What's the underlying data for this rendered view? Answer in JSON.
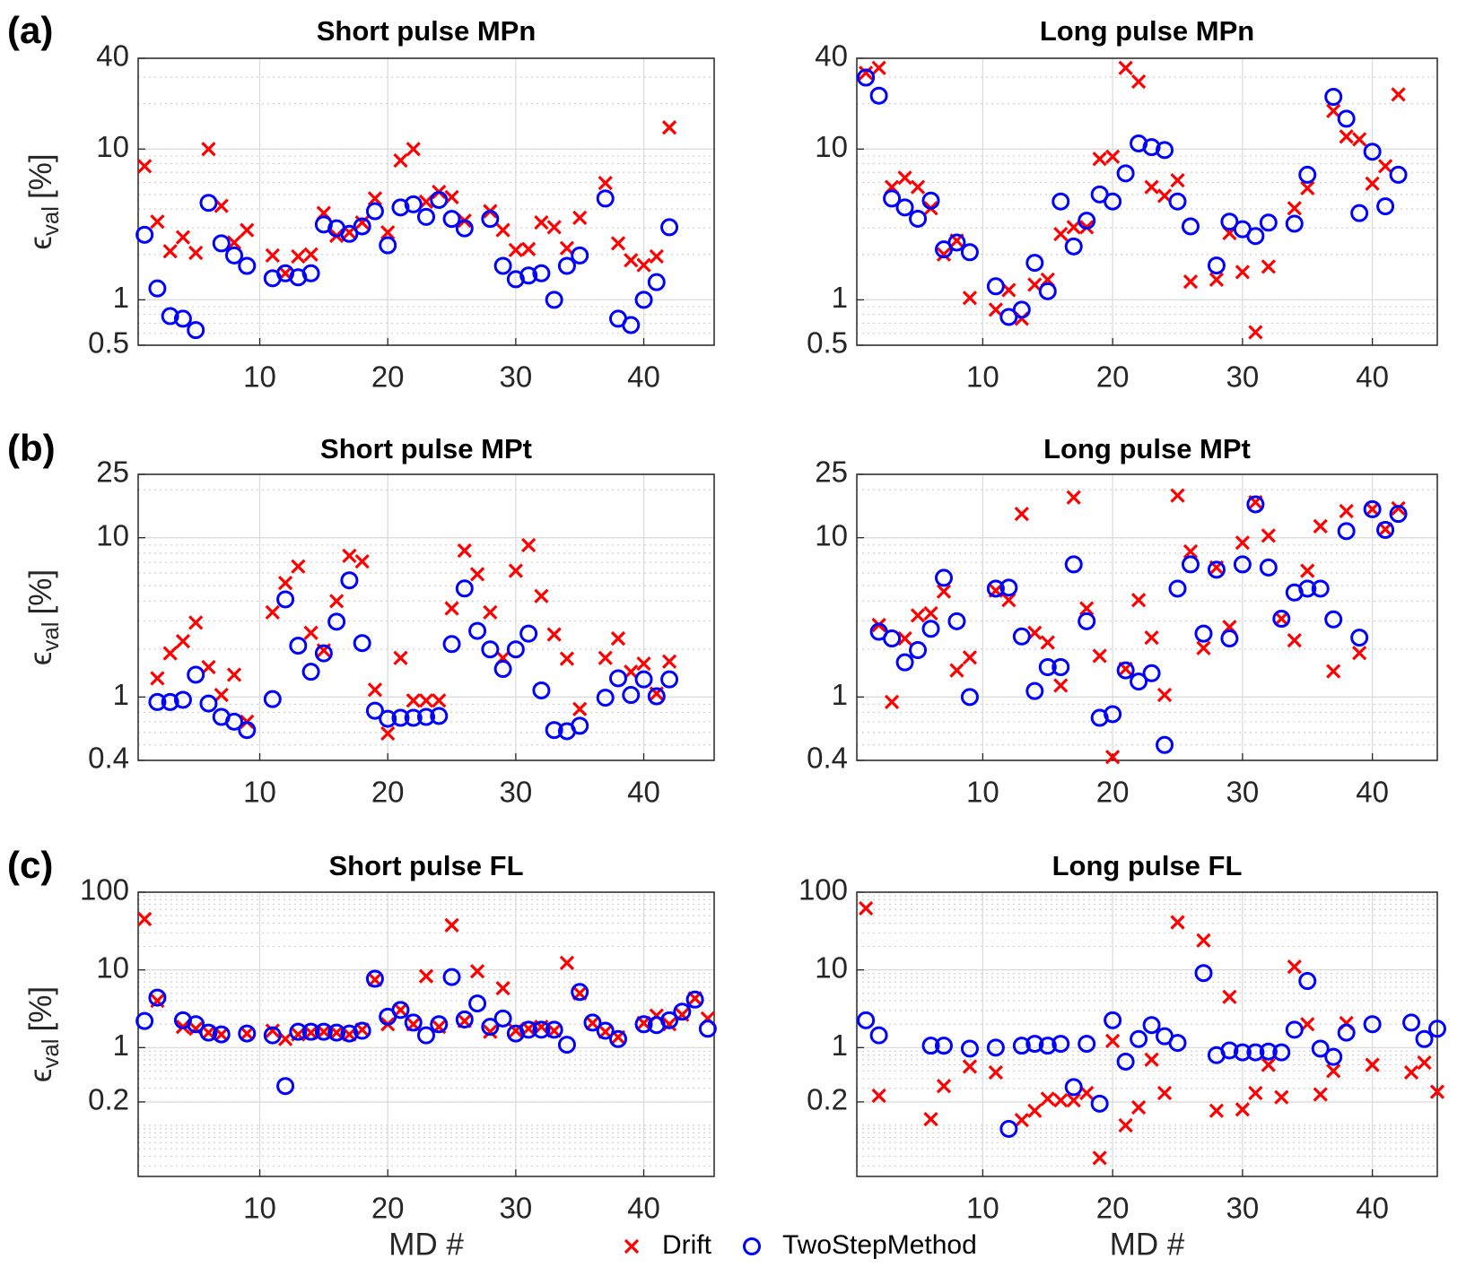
{
  "chart_data": [
    {
      "type": "scatter",
      "panel_label": "(a)",
      "title": "Short pulse MPn",
      "ylabel": {
        "symbol": "ϵ",
        "subscript": "val",
        "unit": "[%]"
      },
      "log_y": true,
      "grid": true,
      "minor_grid": true,
      "xlim": [
        0.5,
        45.5
      ],
      "xticks": [
        10,
        20,
        30,
        40
      ],
      "ylim": [
        0.5,
        40
      ],
      "yticks": [
        0.5,
        1,
        10,
        40
      ],
      "x": [
        1,
        2,
        3,
        4,
        5,
        6,
        7,
        8,
        9,
        11,
        12,
        13,
        14,
        15,
        16,
        17,
        18,
        19,
        20,
        21,
        22,
        23,
        24,
        25,
        26,
        28,
        29,
        30,
        31,
        32,
        33,
        34,
        35,
        37,
        38,
        39,
        40,
        41,
        42
      ],
      "series": [
        {
          "marker": "x",
          "color": "#ff0000",
          "values": [
            7.7,
            3.3,
            2.1,
            2.6,
            2.05,
            10,
            4.2,
            2.4,
            2.9,
            1.97,
            1.5,
            1.94,
            2.0,
            3.76,
            2.66,
            2.8,
            3.26,
            4.7,
            2.8,
            8.4,
            10,
            4.47,
            5.2,
            4.8,
            3.35,
            3.87,
            2.9,
            2.14,
            2.17,
            3.26,
            3.03,
            2.2,
            3.5,
            5.95,
            2.37,
            1.83,
            1.7,
            1.94,
            13.9
          ]
        },
        {
          "marker": "o",
          "color": "#0000ff",
          "values": [
            2.7,
            1.19,
            0.78,
            0.75,
            0.63,
            4.4,
            2.37,
            1.97,
            1.68,
            1.39,
            1.5,
            1.41,
            1.5,
            3.16,
            2.98,
            2.74,
            3.07,
            3.87,
            2.3,
            4.1,
            4.3,
            3.55,
            4.6,
            3.44,
            2.98,
            3.44,
            1.68,
            1.37,
            1.45,
            1.5,
            1.0,
            1.68,
            1.97,
            4.7,
            0.75,
            0.68,
            1.0,
            1.31,
            3.03
          ]
        }
      ]
    },
    {
      "type": "scatter",
      "title": "Long pulse MPn",
      "log_y": true,
      "grid": true,
      "minor_grid": true,
      "xlim": [
        0.3,
        45
      ],
      "xticks": [
        10,
        20,
        30,
        40
      ],
      "ylim": [
        0.5,
        40
      ],
      "yticks": [
        0.5,
        1,
        10,
        40
      ],
      "x": [
        1,
        2,
        3,
        4,
        5,
        6,
        7,
        8,
        9,
        11,
        12,
        13,
        14,
        15,
        16,
        17,
        18,
        19,
        20,
        21,
        22,
        23,
        24,
        25,
        26,
        28,
        29,
        30,
        31,
        32,
        34,
        35,
        37,
        38,
        39,
        40,
        41,
        42
      ],
      "series": [
        {
          "marker": "x",
          "color": "#ff0000",
          "values": [
            32,
            34.5,
            5.6,
            6.45,
            5.6,
            4.05,
            2.0,
            2.47,
            1.03,
            0.86,
            1.16,
            0.75,
            1.26,
            1.36,
            2.73,
            3.03,
            3.03,
            8.6,
            8.9,
            34.5,
            28,
            5.6,
            4.9,
            6.2,
            1.32,
            1.36,
            2.77,
            1.53,
            0.61,
            1.66,
            4.05,
            5.5,
            17.9,
            12.1,
            11.6,
            5.9,
            7.7,
            23
          ]
        },
        {
          "marker": "o",
          "color": "#0000ff",
          "values": [
            29.8,
            22.6,
            4.7,
            4.1,
            3.45,
            4.55,
            2.16,
            2.4,
            2.07,
            1.23,
            0.77,
            0.86,
            1.76,
            1.14,
            4.49,
            2.26,
            3.35,
            5.0,
            4.49,
            6.9,
            10.9,
            10.3,
            9.85,
            4.49,
            3.07,
            1.69,
            3.3,
            2.94,
            2.65,
            3.25,
            3.2,
            6.75,
            22.2,
            15.9,
            3.76,
            9.6,
            4.17,
            6.75
          ]
        }
      ]
    },
    {
      "type": "scatter",
      "panel_label": "(b)",
      "title": "Short pulse MPt",
      "ylabel": {
        "symbol": "ϵ",
        "subscript": "val",
        "unit": "[%]"
      },
      "log_y": true,
      "grid": true,
      "minor_grid": true,
      "xlim": [
        0.5,
        45.5
      ],
      "xticks": [
        10,
        20,
        30,
        40
      ],
      "ylim": [
        0.4,
        25
      ],
      "yticks": [
        0.4,
        1,
        10,
        25
      ],
      "x": [
        2,
        3,
        4,
        5,
        6,
        7,
        8,
        9,
        11,
        12,
        13,
        14,
        15,
        16,
        17,
        18,
        19,
        20,
        21,
        22,
        23,
        24,
        25,
        26,
        27,
        28,
        29,
        30,
        31,
        32,
        33,
        34,
        35,
        37,
        38,
        39,
        40,
        41,
        42
      ],
      "series": [
        {
          "marker": "x",
          "color": "#ff0000",
          "values": [
            1.31,
            1.88,
            2.24,
            2.93,
            1.54,
            1.03,
            1.38,
            0.7,
            3.4,
            5.2,
            6.6,
            2.53,
            1.96,
            4.0,
            7.7,
            7.1,
            1.11,
            0.59,
            1.76,
            0.95,
            0.95,
            0.95,
            3.6,
            8.3,
            5.9,
            3.4,
            1.76,
            6.2,
            8.98,
            4.3,
            2.47,
            1.74,
            0.84,
            1.76,
            2.33,
            1.44,
            1.62,
            1.05,
            1.67
          ]
        },
        {
          "marker": "o",
          "color": "#0000ff",
          "values": [
            0.93,
            0.93,
            0.96,
            1.38,
            0.91,
            0.75,
            0.7,
            0.62,
            0.97,
            4.1,
            2.1,
            1.44,
            1.88,
            2.97,
            5.4,
            2.18,
            0.82,
            0.73,
            0.74,
            0.74,
            0.75,
            0.76,
            2.15,
            4.8,
            2.6,
            1.99,
            1.5,
            1.99,
            2.5,
            1.1,
            0.62,
            0.61,
            0.66,
            0.99,
            1.31,
            1.03,
            1.29,
            1.01,
            1.29
          ]
        }
      ]
    },
    {
      "type": "scatter",
      "title": "Long pulse MPt",
      "log_y": true,
      "grid": true,
      "minor_grid": true,
      "xlim": [
        0.3,
        45
      ],
      "xticks": [
        10,
        20,
        30,
        40
      ],
      "ylim": [
        0.4,
        25
      ],
      "yticks": [
        0.4,
        1,
        10,
        25
      ],
      "x": [
        2,
        3,
        4,
        5,
        6,
        7,
        8,
        9,
        11,
        12,
        13,
        14,
        15,
        16,
        17,
        18,
        19,
        20,
        21,
        22,
        23,
        24,
        25,
        26,
        27,
        28,
        29,
        30,
        31,
        32,
        33,
        34,
        35,
        36,
        37,
        38,
        39,
        40,
        41,
        42
      ],
      "series": [
        {
          "marker": "x",
          "color": "#ff0000",
          "values": [
            2.83,
            0.93,
            2.33,
            3.25,
            3.35,
            4.6,
            1.47,
            1.77,
            4.66,
            4.06,
            14.1,
            2.53,
            2.2,
            1.18,
            17.9,
            3.6,
            1.81,
            0.42,
            1.5,
            4.06,
            2.36,
            1.03,
            18.4,
            8.2,
            2.03,
            6.5,
            2.75,
            9.3,
            16.7,
            10.3,
            3.1,
            2.27,
            6.2,
            11.8,
            1.45,
            14.7,
            1.89,
            15.1,
            11.3,
            15.3
          ]
        },
        {
          "marker": "o",
          "color": "#0000ff",
          "values": [
            2.57,
            2.33,
            1.65,
            1.97,
            2.68,
            5.6,
            2.99,
            1.0,
            4.79,
            4.86,
            2.4,
            1.09,
            1.54,
            1.54,
            6.8,
            2.99,
            0.74,
            0.78,
            1.47,
            1.25,
            1.41,
            0.5,
            4.79,
            6.8,
            2.5,
            6.3,
            2.33,
            6.8,
            16.2,
            6.5,
            3.1,
            4.53,
            4.79,
            4.79,
            3.07,
            11.0,
            2.36,
            15.1,
            11.2,
            14.1
          ]
        }
      ]
    },
    {
      "type": "scatter",
      "panel_label": "(c)",
      "title": "Short pulse FL",
      "ylabel": {
        "symbol": "ϵ",
        "subscript": "val",
        "unit": "[%]"
      },
      "xlabel": "MD #",
      "legend": "bottom",
      "log_y": true,
      "grid": true,
      "minor_grid": true,
      "xlim": [
        0.5,
        45.5
      ],
      "xticks": [
        10,
        20,
        30,
        40
      ],
      "ylim": [
        0.022,
        100
      ],
      "yticks": [
        0.2,
        1,
        10,
        100
      ],
      "x": [
        1,
        2,
        4,
        5,
        6,
        7,
        9,
        11,
        12,
        13,
        14,
        15,
        16,
        17,
        18,
        19,
        20,
        21,
        22,
        23,
        24,
        25,
        26,
        27,
        28,
        29,
        30,
        31,
        32,
        33,
        34,
        35,
        36,
        37,
        38,
        40,
        41,
        42,
        43,
        44,
        45
      ],
      "series": [
        {
          "name": "Drift",
          "marker": "x",
          "color": "#ff0000",
          "values": [
            45,
            4.0,
            1.85,
            1.75,
            1.56,
            1.48,
            1.52,
            1.65,
            1.29,
            1.48,
            1.56,
            1.6,
            1.56,
            1.48,
            1.7,
            7.5,
            2.0,
            3.05,
            2.0,
            8.3,
            1.85,
            37.6,
            2.2,
            9.6,
            1.6,
            5.8,
            1.65,
            1.75,
            1.85,
            1.65,
            12.3,
            5.0,
            2.07,
            1.6,
            1.36,
            2.07,
            2.58,
            2.0,
            2.65,
            4.3,
            2.37
          ]
        },
        {
          "name": "TwoStepMethod",
          "marker": "o",
          "color": "#0000ff",
          "values": [
            2.2,
            4.4,
            2.25,
            2.0,
            1.56,
            1.48,
            1.52,
            1.44,
            0.32,
            1.6,
            1.6,
            1.6,
            1.56,
            1.52,
            1.65,
            7.7,
            2.5,
            3.05,
            2.1,
            1.44,
            2.0,
            8.1,
            2.3,
            3.7,
            1.85,
            2.37,
            1.52,
            1.7,
            1.7,
            1.7,
            1.09,
            5.2,
            2.1,
            1.65,
            1.29,
            2.0,
            1.95,
            2.25,
            2.9,
            4.15,
            1.75
          ]
        }
      ]
    },
    {
      "type": "scatter",
      "title": "Long pulse FL",
      "xlabel": "MD #",
      "log_y": true,
      "grid": true,
      "minor_grid": true,
      "xlim": [
        0.3,
        45
      ],
      "xticks": [
        10,
        20,
        30,
        40
      ],
      "ylim": [
        0.022,
        100
      ],
      "yticks": [
        0.2,
        1,
        10,
        100
      ],
      "x": [
        1,
        2,
        6,
        7,
        9,
        11,
        12,
        13,
        14,
        15,
        16,
        17,
        18,
        19,
        20,
        21,
        22,
        23,
        24,
        25,
        27,
        28,
        29,
        30,
        31,
        32,
        33,
        34,
        35,
        36,
        37,
        38,
        40,
        43,
        44,
        45
      ],
      "series": [
        {
          "marker": "x",
          "color": "#ff0000",
          "values": [
            62,
            0.24,
            0.12,
            0.32,
            0.57,
            0.48,
            null,
            0.117,
            0.154,
            0.22,
            0.21,
            0.21,
            0.26,
            0.038,
            1.22,
            0.1,
            0.17,
            0.7,
            0.26,
            41,
            24,
            0.154,
            4.5,
            0.16,
            0.26,
            0.6,
            0.23,
            11,
            2.0,
            0.25,
            0.5,
            2.07,
            0.6,
            0.48,
            0.64,
            0.27
          ]
        },
        {
          "marker": "o",
          "color": "#0000ff",
          "values": [
            2.25,
            1.44,
            1.06,
            1.06,
            0.97,
            1.0,
            0.09,
            1.06,
            1.12,
            1.06,
            1.12,
            0.31,
            1.12,
            0.19,
            2.25,
            0.66,
            1.29,
            1.95,
            1.4,
            1.15,
            9.1,
            0.8,
            0.92,
            0.87,
            0.87,
            0.89,
            0.87,
            1.7,
            7.2,
            0.97,
            0.76,
            1.56,
            2.0,
            2.1,
            1.29,
            1.75
          ]
        }
      ]
    }
  ]
}
